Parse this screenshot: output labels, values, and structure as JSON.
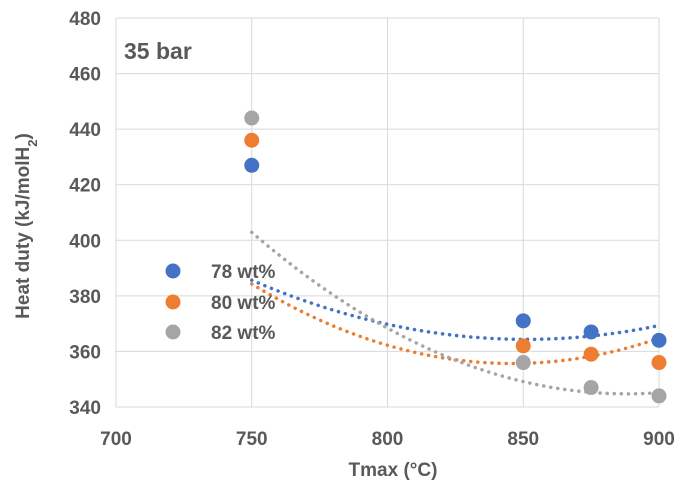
{
  "chart_data": {
    "type": "scatter",
    "xlabel": "Tmax (°C)",
    "ylabel": "Heat duty (kJ/molH",
    "ylabel_subscript": "2",
    "ylabel_close": ")",
    "annotation": "35 bar",
    "xlim": [
      700,
      900
    ],
    "ylim": [
      340,
      480
    ],
    "xticks": [
      700,
      750,
      800,
      850,
      900
    ],
    "yticks": [
      340,
      360,
      380,
      400,
      420,
      440,
      460,
      480
    ],
    "grid": true,
    "legend_position": "center-left",
    "series": [
      {
        "name": "78 wt%",
        "color": "#4472C4",
        "x": [
          750,
          850,
          875,
          900
        ],
        "y": [
          427,
          371,
          367,
          364
        ],
        "trend": [
          0.002086,
          -3.5507,
          1875.3
        ]
      },
      {
        "name": "80 wt%",
        "color": "#ED7D31",
        "x": [
          750,
          850,
          875,
          900
        ],
        "y": [
          436,
          362,
          359,
          356
        ],
        "trend": [
          0.003114,
          -5.2683,
          2583.9
        ]
      },
      {
        "name": "82 wt%",
        "color": "#A5A5A5",
        "x": [
          750,
          850,
          875,
          900
        ],
        "y": [
          444,
          356,
          347,
          344
        ],
        "trend": [
          0.003051,
          -5.4187,
          2750.7
        ]
      }
    ]
  }
}
